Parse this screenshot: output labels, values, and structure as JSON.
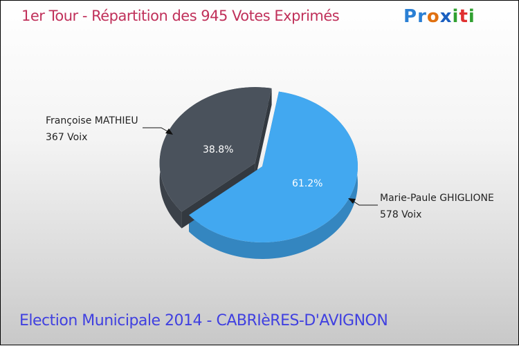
{
  "chart_data": {
    "type": "pie",
    "title": "1er Tour - Répartition des 945 Votes Exprimés",
    "subtitle": "Election Municipale 2014 - CABRIèRES-D'AVIGNON",
    "total": 945,
    "slices": [
      {
        "name": "Marie-Paule GHIGLIONE",
        "votes_label": "578 Voix",
        "value": 578,
        "percent_label": "61.2%",
        "color": "#42a8f0"
      },
      {
        "name": "Françoise MATHIEU",
        "votes_label": "367 Voix",
        "value": 367,
        "percent_label": "38.8%",
        "color": "#4a525c"
      }
    ]
  },
  "logo": "Proxiti",
  "logo_colors": [
    "#2a7fd4",
    "#2a7fd4",
    "#e07010",
    "#1a5fc0",
    "#30a030",
    "#e03030",
    "#30a030"
  ]
}
